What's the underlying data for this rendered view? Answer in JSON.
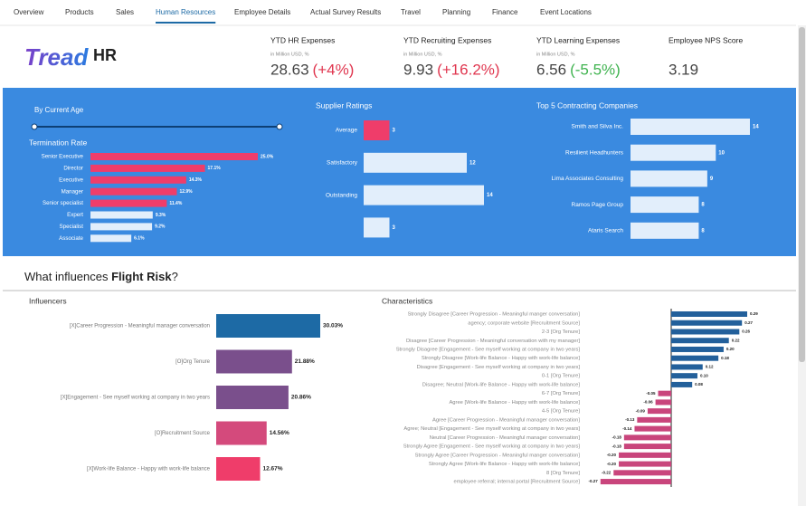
{
  "nav": [
    "Overview",
    "Products",
    "Sales",
    "Human Resources",
    "Employee Details",
    "Actual Survey Results",
    "Travel",
    "Planning",
    "Finance",
    "Event Locations"
  ],
  "nav_active": 3,
  "logo": {
    "brand": "Tread",
    "product": "HR"
  },
  "kpis": [
    {
      "title": "YTD HR Expenses",
      "subtitle": "in Million USD, %",
      "value": 28.63,
      "change": "(+4%)",
      "change_color": "#e0364f"
    },
    {
      "title": "YTD Recruiting Expenses",
      "subtitle": "in Million USD, %",
      "value": 9.93,
      "change": "(+16.2%)",
      "change_color": "#e0364f"
    },
    {
      "title": "YTD Learning Expenses",
      "subtitle": "in Million USD, %",
      "value": 6.56,
      "change": "(-5.5%)",
      "change_color": "#3fb34f"
    },
    {
      "title": "Employee NPS Score",
      "value": 3.19
    }
  ],
  "filter": {
    "label": "By Current Age"
  },
  "section_title": {
    "lead": "What influences ",
    "bold": "Flight Risk",
    "tail": "?"
  },
  "chart_data": [
    {
      "type": "bar",
      "orientation": "horizontal",
      "title": "Termination Rate",
      "categories": [
        "Senior Executive",
        "Director",
        "Executive",
        "Manager",
        "Senior specialist",
        "Expert",
        "Specialist",
        "Associate"
      ],
      "values": [
        25.0,
        17.1,
        14.3,
        12.9,
        11.4,
        9.3,
        9.2,
        6.1
      ],
      "value_labels": [
        "25.0%",
        "17.1%",
        "14.3%",
        "12.9%",
        "11.4%",
        "9.3%",
        "9.2%",
        "6.1%"
      ],
      "colors": [
        "#ef3d6a",
        "#ef3d6a",
        "#ef3d6a",
        "#ef3d6a",
        "#ef3d6a",
        "#e2eefb",
        "#e2eefb",
        "#e2eefb"
      ]
    },
    {
      "type": "bar",
      "orientation": "horizontal",
      "title": "Supplier Ratings",
      "categories": [
        "Average",
        "Satisfactory",
        "Outstanding",
        null
      ],
      "values": [
        3,
        12,
        14,
        3
      ],
      "colors": [
        "#ef3d6a",
        "#e2eefb",
        "#e2eefb",
        "#e2eefb"
      ]
    },
    {
      "type": "bar",
      "orientation": "horizontal",
      "title": "Top 5 Contracting Companies",
      "categories": [
        "Smith and Silva Inc.",
        "Resilient Headhunters",
        "Lima Associates Consulting",
        "Ramos Page Group",
        "Ataris Search"
      ],
      "values": [
        14,
        10,
        9,
        8,
        8
      ],
      "colors": [
        "#e2eefb",
        "#e2eefb",
        "#e2eefb",
        "#e2eefb",
        "#e2eefb"
      ]
    },
    {
      "type": "bar",
      "orientation": "horizontal",
      "title": "Influencers",
      "categories": [
        "[X]Career Progression - Meaningful manager conversation",
        "[O]Org Tenure",
        "[X]Engagement - See myself working at company in two years",
        "[O]Recruitment Source",
        "[X]Work-life Balance - Happy with work-life balance"
      ],
      "values": [
        30.03,
        21.88,
        20.86,
        14.56,
        12.67
      ],
      "value_labels": [
        "30.03%",
        "21.88%",
        "20.86%",
        "14.56%",
        "12.67%"
      ],
      "colors": [
        "#1d6aa5",
        "#7a4f8c",
        "#7a4f8c",
        "#d44a7c",
        "#ef3d6a"
      ]
    },
    {
      "type": "bar",
      "orientation": "horizontal",
      "title": "Characteristics",
      "categories": [
        "Strongly Disagree [Career Progression - Meaningful manger conversation]",
        "agency; corporate website [Recruitment Source]",
        "2-3 [Org Tenure]",
        "Disagree [Career Progression - Meaningful conversation with my manager]",
        "Strongly Disagree [Engagement - See myself working at company in two years]",
        "Strongly Disagree [Work-life Balance - Happy with work-life balance]",
        "Disagree [Engagement - See myself working at company in two years]",
        "0-1 [Org Tenure]",
        "Disagree; Neutral [Work-life Balance - Happy with work-life balance]",
        "6-7 [Org Tenure]",
        "Agree [Work-life Balance - Happy with work-life balance]",
        "4-5 [Org Tenure]",
        "Agree [Career Progression - Meaningful manager conversation]",
        "Agree; Neutral [Engagement - See myself working at company in two years]",
        "Neutral [Career Progression - Meaningful manager conversation]",
        "Strongly Agree [Engagement - See myself working at company in two years]",
        "Strongly Agree [Career Progression - Meaningful manger conversation]",
        "Strongly Agree [Work-life Balance - Happy with work-life balance]",
        "8 [Org Tenure]",
        "employee referral; internal portal [Recruitment Source]"
      ],
      "values": [
        0.29,
        0.27,
        0.26,
        0.22,
        0.2,
        0.18,
        0.12,
        0.1,
        0.08,
        -0.05,
        -0.06,
        -0.09,
        -0.13,
        -0.14,
        -0.18,
        -0.18,
        -0.2,
        -0.2,
        -0.22,
        -0.27
      ],
      "value_labels": [
        "0.29",
        "0.27",
        "0.26",
        "0.22",
        "0.20",
        "0.18",
        "0.12",
        "0.10",
        "0.08",
        "-0.05",
        "-0.06",
        "-0.09",
        "-0.13",
        "-0.14",
        "-0.18",
        "-0.18",
        "-0.20",
        "-0.20",
        "-0.22",
        "-0.27"
      ],
      "positive_color": "#23609b",
      "negative_color": "#c9457c"
    }
  ]
}
